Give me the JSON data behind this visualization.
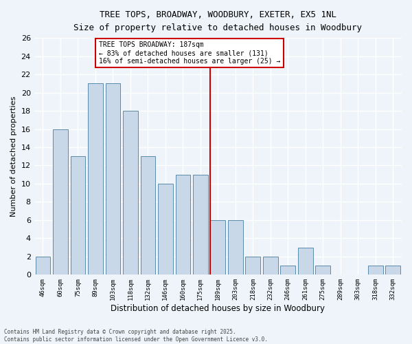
{
  "title_line1": "TREE TOPS, BROADWAY, WOODBURY, EXETER, EX5 1NL",
  "title_line2": "Size of property relative to detached houses in Woodbury",
  "xlabel": "Distribution of detached houses by size in Woodbury",
  "ylabel": "Number of detached properties",
  "bar_labels": [
    "46sqm",
    "60sqm",
    "75sqm",
    "89sqm",
    "103sqm",
    "118sqm",
    "132sqm",
    "146sqm",
    "160sqm",
    "175sqm",
    "189sqm",
    "203sqm",
    "218sqm",
    "232sqm",
    "246sqm",
    "261sqm",
    "275sqm",
    "289sqm",
    "303sqm",
    "318sqm",
    "332sqm"
  ],
  "bar_values": [
    2,
    16,
    13,
    21,
    21,
    18,
    13,
    10,
    11,
    11,
    6,
    6,
    2,
    2,
    1,
    3,
    1,
    0,
    0,
    1,
    1
  ],
  "bar_color": "#c8d8e8",
  "bar_edgecolor": "#5a8aaa",
  "ylim": [
    0,
    26
  ],
  "yticks": [
    0,
    2,
    4,
    6,
    8,
    10,
    12,
    14,
    16,
    18,
    20,
    22,
    24,
    26
  ],
  "red_line_index": 10,
  "annotation_title": "TREE TOPS BROADWAY: 187sqm",
  "annotation_line2": "← 83% of detached houses are smaller (131)",
  "annotation_line3": "16% of semi-detached houses are larger (25) →",
  "footer_line1": "Contains HM Land Registry data © Crown copyright and database right 2025.",
  "footer_line2": "Contains public sector information licensed under the Open Government Licence v3.0.",
  "background_color": "#eef4fa",
  "grid_color": "#ffffff",
  "annotation_box_facecolor": "#ffffff",
  "annotation_box_edgecolor": "#cc0000",
  "red_line_color": "#cc0000"
}
